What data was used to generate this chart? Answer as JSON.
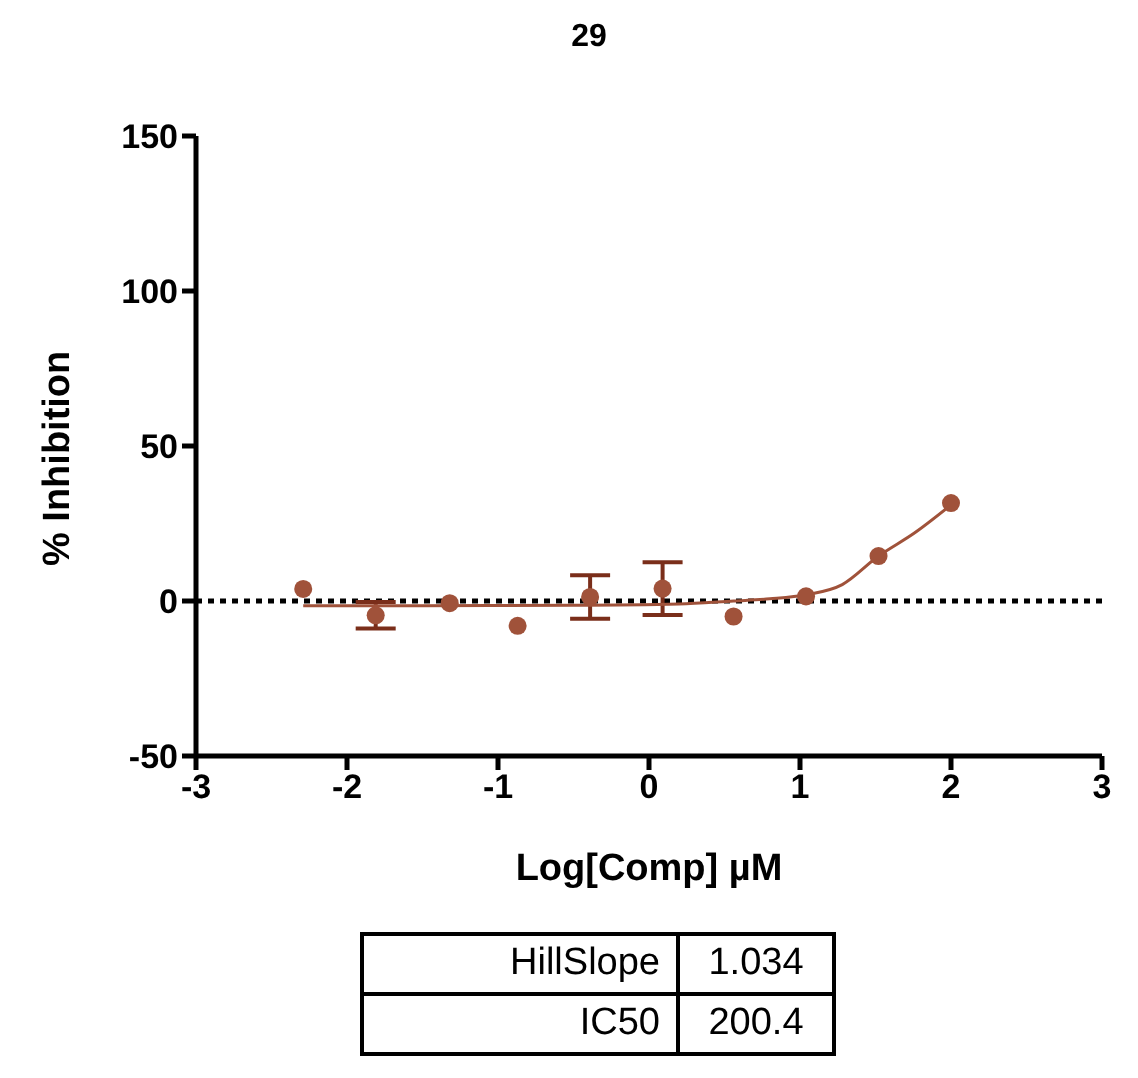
{
  "chart_data": {
    "type": "scatter",
    "title": "29",
    "xlabel": "Log[Comp] µM",
    "ylabel": "% Inhibition",
    "series": [
      {
        "marker": "circle",
        "color": "#a0523a",
        "x": [
          -2.29,
          -1.81,
          -1.32,
          -0.87,
          -0.39,
          0.09,
          0.56,
          1.04,
          1.52,
          2.0
        ],
        "values": [
          3.9,
          -4.6,
          -0.7,
          -8,
          1.3,
          4,
          -5,
          1.5,
          14.5,
          31.6
        ],
        "errors": [
          null,
          4.3,
          null,
          null,
          7,
          8.5,
          null,
          null,
          null,
          null
        ]
      },
      {
        "type": "line",
        "marker": "none",
        "color": "#a0523a",
        "x": [
          -2.29,
          -1.5,
          -0.5,
          0.2,
          0.56,
          0.8,
          1.04,
          1.28,
          1.52,
          1.76,
          2.0
        ],
        "values": [
          -1.5,
          -1.5,
          -1.4,
          -1,
          0,
          0.7,
          2,
          5.3,
          14.5,
          22,
          31
        ]
      }
    ],
    "xlim": [
      -3,
      3
    ],
    "xticks": [
      -3,
      -2,
      -1,
      0,
      1,
      2,
      3
    ],
    "ylim": [
      -50,
      150
    ],
    "yticks": [
      -50,
      0,
      50,
      100,
      150
    ],
    "grid": false,
    "legend": false,
    "ref_lines": [
      {
        "axis": "y",
        "value": 0,
        "color": "#000000",
        "line_style": "dotted"
      }
    ],
    "annotations": [
      "HillSlope",
      "1.034",
      "IC50",
      "200.4"
    ]
  }
}
